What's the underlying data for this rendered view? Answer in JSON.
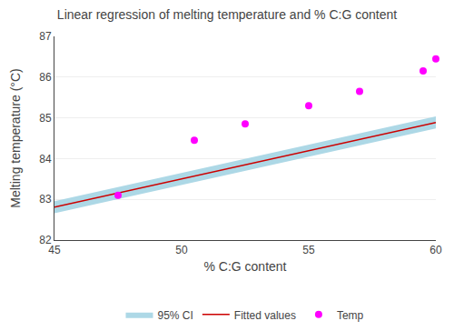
{
  "chart_data": {
    "type": "scatter",
    "title": "Linear regression of melting temperature and % C:G content",
    "xlabel": "% C:G content",
    "ylabel": "Melting temperature (°C)",
    "xlim": [
      45,
      60
    ],
    "ylim": [
      82,
      87
    ],
    "xticks": [
      45,
      50,
      55,
      60
    ],
    "yticks": [
      82,
      83,
      84,
      85,
      86,
      87
    ],
    "grid": "y",
    "legend": "bottom",
    "series": [
      {
        "name": "95% CI",
        "type": "band",
        "color": "#ADD8E6",
        "x": [
          45,
          60
        ],
        "lower": [
          82.656,
          84.738
        ],
        "upper": [
          82.956,
          85.038
        ]
      },
      {
        "name": "Fitted values",
        "type": "line",
        "color": "#CC0000",
        "x": [
          45,
          60
        ],
        "values": [
          82.806,
          84.888
        ]
      },
      {
        "name": "Temp",
        "type": "scatter",
        "color": "#FF00FF",
        "marker": "circle",
        "x": [
          47.5,
          50.5,
          52.5,
          55.0,
          57.0,
          59.5,
          60.0
        ],
        "values": [
          83.1,
          84.45,
          84.85,
          85.3,
          85.65,
          86.15,
          86.45
        ]
      }
    ]
  }
}
